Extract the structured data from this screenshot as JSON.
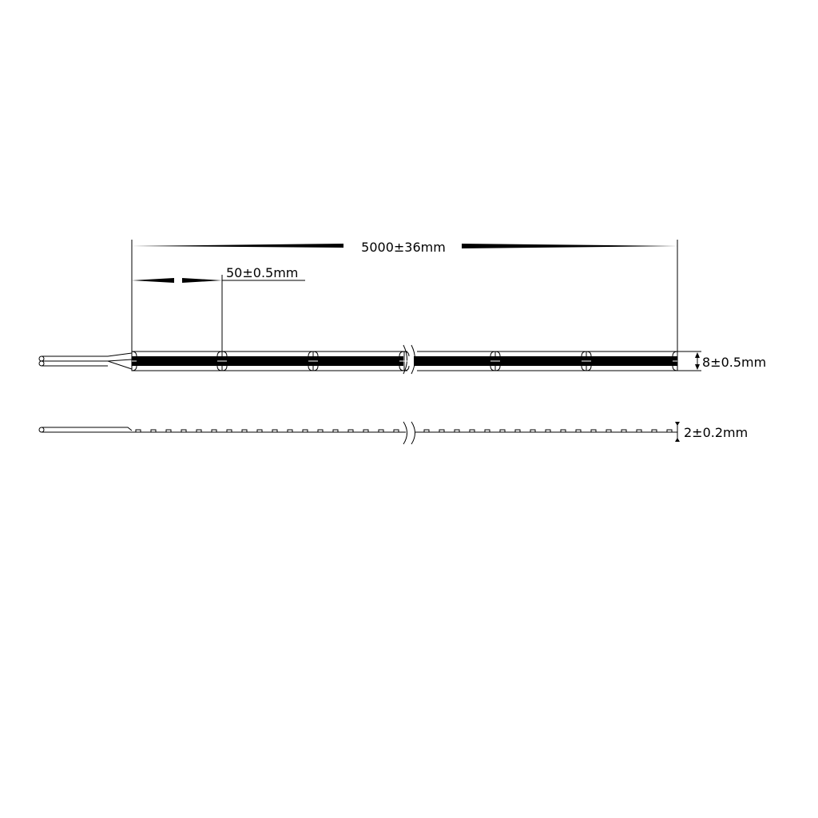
{
  "dimensions": {
    "length": "5000±36mm",
    "cut_interval": "50±0.5mm",
    "width": "8±0.5mm",
    "thickness": "2±0.2mm"
  },
  "colors": {
    "line": "#000000",
    "background": "#ffffff"
  }
}
